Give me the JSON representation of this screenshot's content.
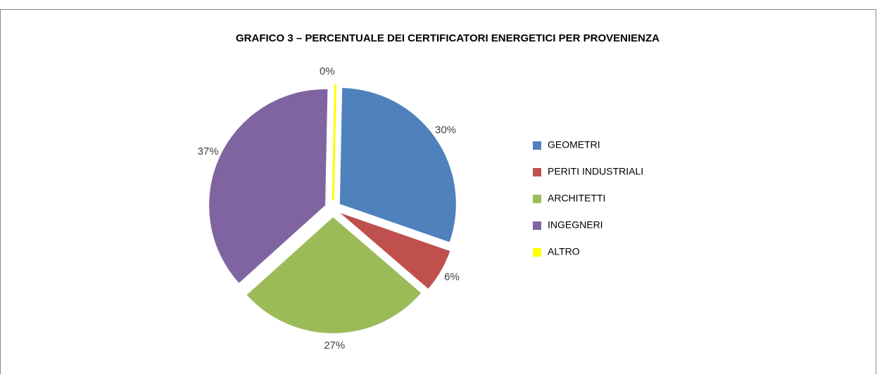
{
  "chart_data": {
    "type": "pie",
    "title": "GRAFICO 3 – PERCENTUALE DEI CERTIFICATORI ENERGETICI PER PROVENIENZA",
    "categories": [
      "GEOMETRI",
      "PERITI INDUSTRIALI",
      "ARCHITETTI",
      "INGEGNERI",
      "ALTRO"
    ],
    "values": [
      30,
      6,
      27,
      37,
      0
    ],
    "value_labels": [
      "30%",
      "6%",
      "27%",
      "37%",
      "0%"
    ],
    "colors": [
      "#4f81bd",
      "#c0504d",
      "#9bbb59",
      "#8064a2",
      "#ffff00"
    ],
    "legend": "right"
  }
}
